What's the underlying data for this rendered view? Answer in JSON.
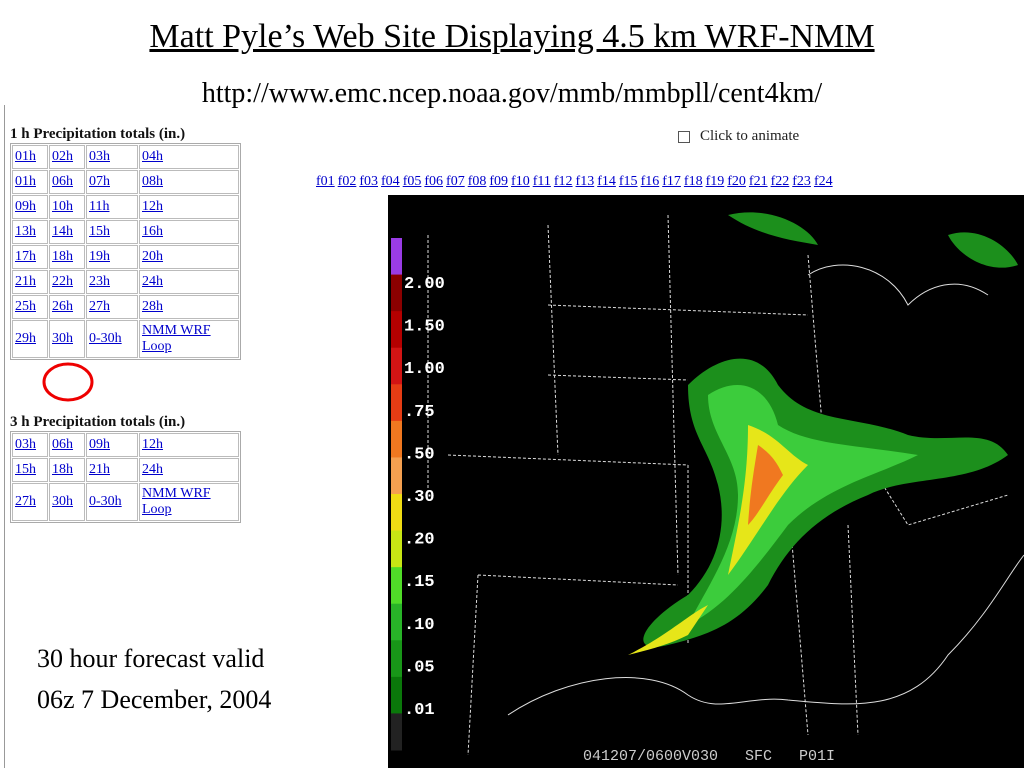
{
  "header": {
    "title": "Matt Pyle’s Web Site Displaying 4.5 km WRF-NMM",
    "url": "http://www.emc.ncep.noaa.gov/mmb/mmbpll/cent4km/"
  },
  "table1": {
    "caption": "1 h Precipitation totals (in.)",
    "rows": [
      [
        "01h",
        "02h",
        "03h",
        "04h"
      ],
      [
        "01h",
        "06h",
        "07h",
        "08h"
      ],
      [
        "09h",
        "10h",
        "11h",
        "12h"
      ],
      [
        "13h",
        "14h",
        "15h",
        "16h"
      ],
      [
        "17h",
        "18h",
        "19h",
        "20h"
      ],
      [
        "21h",
        "22h",
        "23h",
        "24h"
      ],
      [
        "25h",
        "26h",
        "27h",
        "28h"
      ],
      [
        "29h",
        "30h",
        "0-30h",
        "NMM WRF Loop"
      ]
    ]
  },
  "table2": {
    "caption": "3 h Precipitation totals (in.)",
    "rows": [
      [
        "03h",
        "06h",
        "09h",
        "12h"
      ],
      [
        "15h",
        "18h",
        "21h",
        "24h"
      ],
      [
        "27h",
        "30h",
        "0-30h",
        "NMM WRF Loop"
      ]
    ]
  },
  "animate": {
    "label": "Click to animate"
  },
  "frames": [
    "f01",
    "f02",
    "f03",
    "f04",
    "f05",
    "f06",
    "f07",
    "f08",
    "f09",
    "f10",
    "f11",
    "f12",
    "f13",
    "f14",
    "f15",
    "f16",
    "f17",
    "f18",
    "f19",
    "f20",
    "f21",
    "f22",
    "f23",
    "f24"
  ],
  "map": {
    "legend": [
      "2.00",
      "1.50",
      "1.00",
      ".75",
      ".50",
      ".30",
      ".20",
      ".15",
      ".10",
      ".05",
      ".01"
    ],
    "footer": "041207/0600V030   SFC   P01I"
  },
  "caption": {
    "lines": [
      "30 hour forecast valid",
      "06z 7 December, 2004"
    ]
  }
}
